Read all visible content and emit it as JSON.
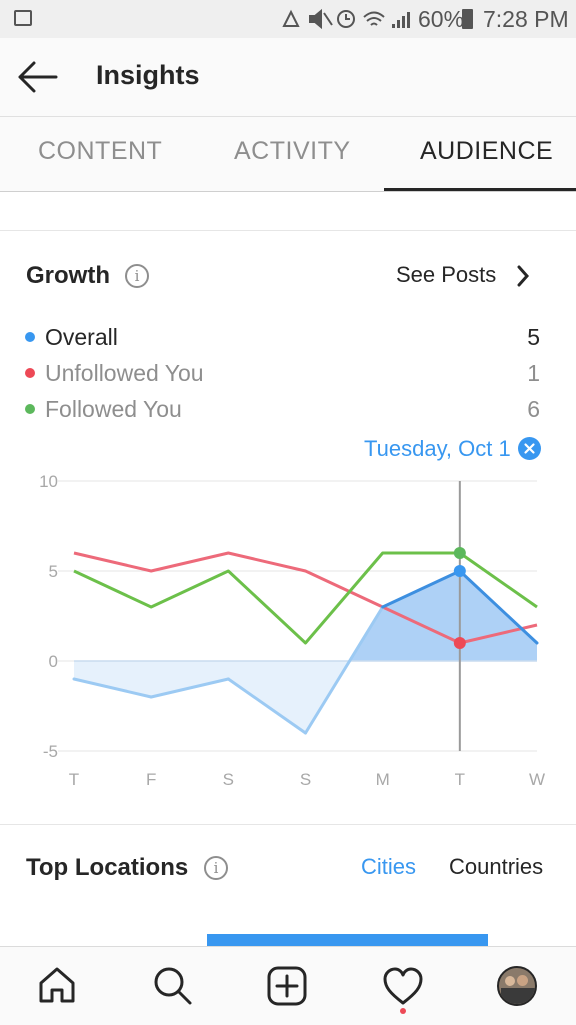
{
  "status_bar": {
    "battery": "60%",
    "time": "7:28 PM"
  },
  "app_bar": {
    "title": "Insights"
  },
  "tabs": [
    {
      "label": "CONTENT",
      "active": false
    },
    {
      "label": "ACTIVITY",
      "active": false
    },
    {
      "label": "AUDIENCE",
      "active": true
    }
  ],
  "growth": {
    "heading": "Growth",
    "see_posts": "See Posts",
    "legend": [
      {
        "label": "Overall",
        "value": "5",
        "color": "#3897f0"
      },
      {
        "label": "Unfollowed You",
        "value": "1",
        "color": "#ed4956"
      },
      {
        "label": "Followed You",
        "value": "6",
        "color": "#5cb85c"
      }
    ],
    "selected_day": "Tuesday, Oct 1"
  },
  "chart_data": {
    "type": "line",
    "categories": [
      "T",
      "F",
      "S",
      "S",
      "M",
      "T",
      "W"
    ],
    "series": [
      {
        "name": "Overall",
        "values": [
          -1,
          -2,
          -1,
          -4,
          3,
          5,
          1
        ],
        "color": "#3897f0"
      },
      {
        "name": "Unfollowed You",
        "values": [
          6,
          5,
          6,
          5,
          3,
          1,
          2
        ],
        "color": "#ed6a7a"
      },
      {
        "name": "Followed You",
        "values": [
          5,
          3,
          5,
          1,
          6,
          6,
          3
        ],
        "color": "#6cc04a"
      }
    ],
    "yticks": [
      "10",
      "5",
      "0",
      "-5"
    ],
    "ylim": [
      -5,
      10
    ],
    "selected_index": 5,
    "grid": true
  },
  "top_locations": {
    "heading": "Top Locations",
    "tab_cities": "Cities",
    "tab_countries": "Countries"
  },
  "colors": {
    "accent": "#3897f0"
  }
}
